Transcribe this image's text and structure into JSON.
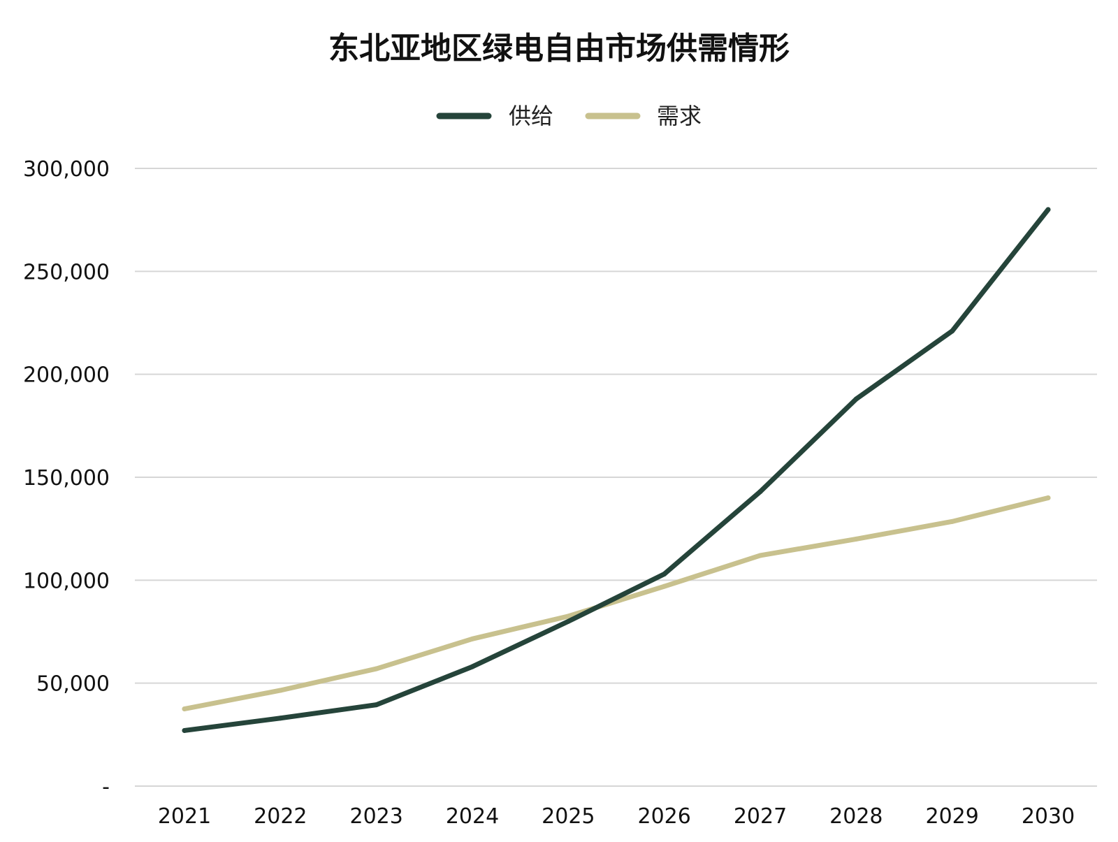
{
  "chart_data": {
    "type": "line",
    "title": "东北亚地区绿电自由市场供需情形",
    "categories": [
      "2021",
      "2022",
      "2023",
      "2024",
      "2025",
      "2026",
      "2027",
      "2028",
      "2029",
      "2030"
    ],
    "series": [
      {
        "name": "供给",
        "color": "#25443a",
        "values": [
          27000,
          33000,
          39500,
          58000,
          80000,
          103000,
          143000,
          188000,
          221000,
          280000
        ]
      },
      {
        "name": "需求",
        "color": "#c8c18e",
        "values": [
          37500,
          46500,
          57000,
          71500,
          82500,
          97000,
          112000,
          120000,
          128500,
          140000
        ]
      }
    ],
    "y_ticks": [
      0,
      50000,
      100000,
      150000,
      200000,
      250000,
      300000
    ],
    "y_tick_labels": [
      "-",
      "50,000",
      "100,000",
      "150,000",
      "200,000",
      "250,000",
      "300,000"
    ],
    "ylim": [
      0,
      300000
    ],
    "grid": true,
    "legend": "top-center",
    "xlabel": "",
    "ylabel": ""
  }
}
